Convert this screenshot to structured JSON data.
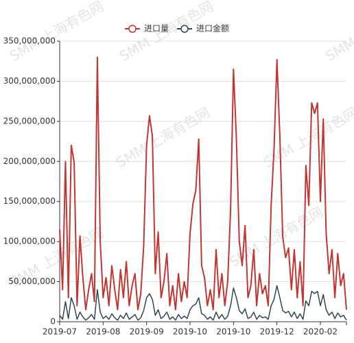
{
  "chart_data": {
    "type": "line",
    "watermark": "SMM 上海有色网",
    "x": [
      "2019-07",
      null,
      null,
      null,
      null,
      null,
      null,
      null,
      null,
      null,
      null,
      null,
      null,
      null,
      null,
      "2019-08",
      null,
      null,
      null,
      null,
      null,
      null,
      null,
      null,
      null,
      null,
      null,
      null,
      null,
      null,
      "2019-09",
      null,
      null,
      null,
      null,
      null,
      null,
      null,
      null,
      null,
      null,
      null,
      null,
      null,
      null,
      "2019-10",
      null,
      null,
      null,
      null,
      null,
      null,
      null,
      null,
      null,
      null,
      null,
      null,
      null,
      null,
      "2019-10",
      null,
      null,
      null,
      null,
      null,
      null,
      null,
      null,
      null,
      null,
      null,
      null,
      null,
      null,
      "2019-12",
      null,
      null,
      null,
      null,
      null,
      null,
      null,
      null,
      null,
      null,
      null,
      null,
      null,
      null,
      "2020-02",
      null,
      null,
      null,
      null,
      null,
      null,
      null,
      null,
      null
    ],
    "series": [
      {
        "name": "进口量",
        "color": "#c23531",
        "values": [
          115000000,
          40000000,
          200000000,
          30000000,
          220000000,
          199000000,
          20000000,
          107000000,
          55000000,
          15000000,
          40000000,
          60000000,
          25000000,
          330000000,
          100000000,
          30000000,
          55000000,
          20000000,
          70000000,
          40000000,
          15000000,
          65000000,
          30000000,
          75000000,
          20000000,
          45000000,
          60000000,
          15000000,
          35000000,
          95000000,
          220000000,
          257000000,
          232000000,
          60000000,
          112000000,
          30000000,
          50000000,
          85000000,
          20000000,
          45000000,
          15000000,
          60000000,
          25000000,
          50000000,
          30000000,
          110000000,
          147000000,
          164000000,
          228000000,
          70000000,
          55000000,
          20000000,
          40000000,
          15000000,
          90000000,
          30000000,
          60000000,
          20000000,
          50000000,
          140000000,
          315000000,
          229000000,
          100000000,
          70000000,
          120000000,
          30000000,
          45000000,
          90000000,
          20000000,
          60000000,
          35000000,
          45000000,
          20000000,
          145000000,
          215000000,
          327000000,
          232000000,
          106000000,
          80000000,
          92000000,
          40000000,
          90000000,
          30000000,
          75000000,
          20000000,
          195000000,
          145000000,
          273000000,
          260000000,
          273000000,
          150000000,
          253000000,
          110000000,
          60000000,
          90000000,
          30000000,
          85000000,
          45000000,
          60000000,
          15000000
        ]
      },
      {
        "name": "进口金额",
        "color": "#2f4554",
        "values": [
          8000000,
          3000000,
          25000000,
          4000000,
          30000000,
          20000000,
          3000000,
          12000000,
          6000000,
          2000000,
          5000000,
          9000000,
          3000000,
          40000000,
          12000000,
          4000000,
          7000000,
          3000000,
          10000000,
          5000000,
          2000000,
          8000000,
          4000000,
          11000000,
          3000000,
          6000000,
          9000000,
          2000000,
          5000000,
          14000000,
          30000000,
          35000000,
          28000000,
          8000000,
          15000000,
          4000000,
          7000000,
          12000000,
          3000000,
          6000000,
          2000000,
          9000000,
          4000000,
          7000000,
          4000000,
          15000000,
          20000000,
          22000000,
          30000000,
          10000000,
          8000000,
          3000000,
          6000000,
          2000000,
          12000000,
          4000000,
          9000000,
          3000000,
          7000000,
          20000000,
          42000000,
          30000000,
          14000000,
          10000000,
          16000000,
          4000000,
          6000000,
          12000000,
          3000000,
          8000000,
          5000000,
          6000000,
          3000000,
          20000000,
          28000000,
          45000000,
          30000000,
          14000000,
          11000000,
          13000000,
          6000000,
          12000000,
          4000000,
          10000000,
          3000000,
          26000000,
          20000000,
          38000000,
          35000000,
          38000000,
          20000000,
          34000000,
          15000000,
          8000000,
          12000000,
          4000000,
          11000000,
          6000000,
          8000000,
          2000000
        ]
      }
    ],
    "ylim": [
      0,
      350000000
    ],
    "yticks": [
      0,
      {
        "value": 50000000,
        "label": "50,000,000"
      },
      {
        "value": 100000000,
        "label": "100,000,000"
      },
      {
        "value": 150000000,
        "label": "150,000,000"
      },
      {
        "value": 200000000,
        "label": "200,000,000"
      },
      {
        "value": 250000000,
        "label": "250,000,000"
      },
      {
        "value": 300000000,
        "label": "300,000,000"
      },
      {
        "value": 350000000,
        "label": "350,000,000"
      }
    ],
    "grid": true,
    "legend": "top"
  }
}
